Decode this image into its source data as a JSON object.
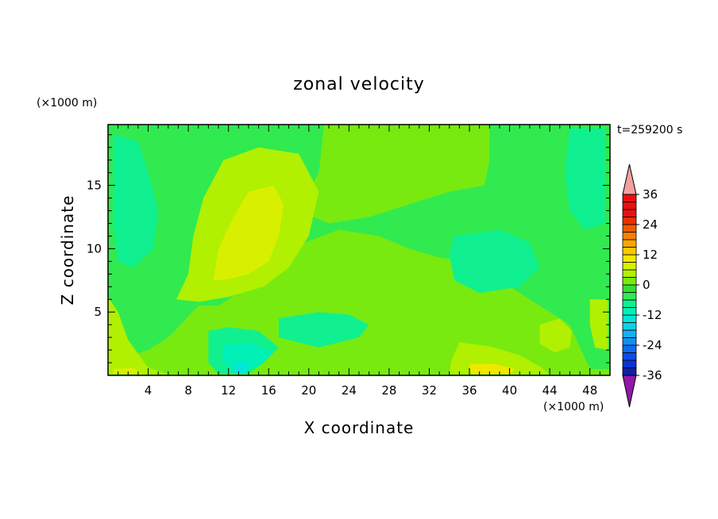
{
  "chart_data": {
    "type": "heatmap",
    "title": "zonal velocity",
    "time_label": "t=259200 s",
    "xlabel": "X coordinate",
    "ylabel": "Z coordinate",
    "x_unit": "(×1000 m)",
    "y_unit": "(×1000 m)",
    "xlim": [
      0,
      50
    ],
    "ylim": [
      0,
      19.8
    ],
    "x_ticks": [
      4,
      8,
      12,
      16,
      20,
      24,
      28,
      32,
      36,
      40,
      44,
      48
    ],
    "y_ticks": [
      5,
      10,
      15
    ],
    "colorbar": {
      "levels": [
        -42,
        -39,
        -36,
        -33,
        -30,
        -27,
        -24,
        -21,
        -18,
        -15,
        -12,
        -9,
        -6,
        -3,
        0,
        3,
        6,
        9,
        12,
        15,
        18,
        21,
        24,
        27,
        30,
        33,
        36,
        39,
        42
      ],
      "tick_labels": [
        36,
        24,
        12,
        0,
        -12,
        -24,
        -36
      ],
      "colors": [
        "#6a0d9a",
        "#2a1a8c",
        "#1020a8",
        "#0a34d0",
        "#0a4ee8",
        "#0a6cf0",
        "#1090f0",
        "#18b0f0",
        "#10d0e8",
        "#00e8d8",
        "#00f0b8",
        "#10f090",
        "#30ea50",
        "#30e030",
        "#78ea10",
        "#b0f000",
        "#d8f000",
        "#f0e800",
        "#f8c800",
        "#f8a800",
        "#f88000",
        "#f05a00",
        "#e83000",
        "#e81010"
      ],
      "over_color": "#f4a0a0",
      "under_color": "#9018a8"
    },
    "field_regions": [
      {
        "value": 1.5,
        "points": [
          [
            0,
            0
          ],
          [
            50,
            0
          ],
          [
            50,
            19.8
          ],
          [
            0,
            19.8
          ]
        ]
      },
      {
        "value": -4.5,
        "points": [
          [
            0,
            19.8
          ],
          [
            6.5,
            19.8
          ],
          [
            7,
            17
          ],
          [
            6,
            14
          ],
          [
            6.5,
            12
          ],
          [
            6,
            10
          ],
          [
            4,
            8
          ],
          [
            0,
            7
          ]
        ]
      },
      {
        "value": -4.5,
        "points": [
          [
            45,
            19.8
          ],
          [
            50,
            19.8
          ],
          [
            50,
            0.5
          ],
          [
            48,
            0.5
          ],
          [
            46,
            4
          ],
          [
            42,
            6
          ],
          [
            38,
            8
          ],
          [
            36,
            9
          ],
          [
            33,
            9.3
          ],
          [
            30,
            10
          ],
          [
            27,
            11
          ],
          [
            23,
            11.5
          ],
          [
            18,
            10
          ],
          [
            14,
            7
          ],
          [
            11,
            5.5
          ],
          [
            9,
            5.5
          ],
          [
            6,
            3
          ],
          [
            4,
            2
          ],
          [
            1,
            1.3
          ],
          [
            0,
            1.5
          ],
          [
            0,
            7
          ],
          [
            4,
            8
          ],
          [
            6,
            10
          ],
          [
            6.5,
            12
          ],
          [
            6,
            14
          ],
          [
            7,
            17
          ],
          [
            6.5,
            19.8
          ],
          [
            21.5,
            19.8
          ],
          [
            21,
            16
          ],
          [
            19,
            13
          ],
          [
            22,
            12
          ],
          [
            26,
            12.5
          ],
          [
            30,
            13.5
          ],
          [
            34,
            14.5
          ],
          [
            37.5,
            15
          ],
          [
            38,
            17
          ],
          [
            38,
            19.8
          ]
        ]
      },
      {
        "value": -7.5,
        "points": [
          [
            0.5,
            19
          ],
          [
            3,
            18.5
          ],
          [
            4,
            16
          ],
          [
            5,
            13
          ],
          [
            4.5,
            10
          ],
          [
            2.5,
            8.5
          ],
          [
            1,
            9
          ],
          [
            0.5,
            12
          ]
        ]
      },
      {
        "value": -7.5,
        "points": [
          [
            46,
            19.5
          ],
          [
            49.5,
            19.5
          ],
          [
            49.5,
            12
          ],
          [
            47.5,
            11.5
          ],
          [
            46,
            13
          ],
          [
            45.5,
            16
          ]
        ]
      },
      {
        "value": -7.5,
        "points": [
          [
            34.5,
            11
          ],
          [
            39,
            11.5
          ],
          [
            42,
            10.5
          ],
          [
            43,
            8.5
          ],
          [
            41,
            7
          ],
          [
            37,
            6.5
          ],
          [
            34.5,
            7.5
          ],
          [
            34,
            9.5
          ]
        ]
      },
      {
        "value": -7.5,
        "points": [
          [
            17,
            4.5
          ],
          [
            21,
            5
          ],
          [
            24,
            4.8
          ],
          [
            26,
            4
          ],
          [
            25,
            3
          ],
          [
            21,
            2.2
          ],
          [
            17,
            3
          ]
        ]
      },
      {
        "value": -7.5,
        "points": [
          [
            10,
            3.5
          ],
          [
            12,
            3.8
          ],
          [
            15,
            3.5
          ],
          [
            17,
            2.2
          ],
          [
            15.5,
            1
          ],
          [
            14,
            0.1
          ],
          [
            11,
            0.1
          ],
          [
            10,
            1
          ]
        ]
      },
      {
        "value": -10.5,
        "points": [
          [
            11.5,
            2.4
          ],
          [
            14,
            2.6
          ],
          [
            16.5,
            1.8
          ],
          [
            15,
            0.7
          ],
          [
            12.5,
            0.4
          ],
          [
            11.5,
            1
          ]
        ]
      },
      {
        "value": -13.5,
        "points": [
          [
            12.5,
            0.1
          ],
          [
            13.8,
            0.1
          ],
          [
            14,
            0.9
          ],
          [
            13.2,
            1.1
          ],
          [
            12.6,
            0.8
          ]
        ]
      },
      {
        "value": 4.5,
        "points": [
          [
            6.8,
            6
          ],
          [
            8,
            8
          ],
          [
            8.5,
            11
          ],
          [
            9.5,
            14
          ],
          [
            11.5,
            17
          ],
          [
            15,
            18
          ],
          [
            19,
            17.5
          ],
          [
            21,
            14.5
          ],
          [
            20,
            11
          ],
          [
            18,
            8.5
          ],
          [
            15.5,
            7
          ],
          [
            12,
            6.2
          ],
          [
            9,
            5.8
          ]
        ]
      },
      {
        "value": 4.5,
        "points": [
          [
            0,
            6.2
          ],
          [
            1,
            5
          ],
          [
            2,
            2.8
          ],
          [
            4,
            0.6
          ],
          [
            6,
            0.1
          ],
          [
            0,
            0.1
          ]
        ]
      },
      {
        "value": 4.5,
        "points": [
          [
            35,
            2.6
          ],
          [
            38,
            2.3
          ],
          [
            41,
            1.6
          ],
          [
            43,
            0.7
          ],
          [
            44,
            0.1
          ],
          [
            34,
            0.1
          ],
          [
            34.2,
            1.2
          ]
        ]
      },
      {
        "value": 4.5,
        "points": [
          [
            43,
            4
          ],
          [
            45,
            4.5
          ],
          [
            46.2,
            3.5
          ],
          [
            46,
            2.2
          ],
          [
            44.5,
            1.8
          ],
          [
            43,
            2.5
          ]
        ]
      },
      {
        "value": 4.5,
        "points": [
          [
            48,
            6
          ],
          [
            49.8,
            6
          ],
          [
            49.8,
            2
          ],
          [
            48.5,
            2.2
          ],
          [
            48,
            4
          ]
        ]
      },
      {
        "value": 7.5,
        "points": [
          [
            10.5,
            7.5
          ],
          [
            11,
            10
          ],
          [
            12.5,
            12.5
          ],
          [
            14,
            14.5
          ],
          [
            16.5,
            15
          ],
          [
            17.5,
            13.5
          ],
          [
            17,
            11
          ],
          [
            16,
            9
          ],
          [
            14,
            8
          ],
          [
            12,
            7.6
          ]
        ]
      },
      {
        "value": 7.5,
        "points": [
          [
            0.5,
            0.5
          ],
          [
            2.5,
            0.6
          ],
          [
            3.5,
            0.1
          ],
          [
            0.5,
            0.1
          ]
        ]
      },
      {
        "value": 10.5,
        "points": [
          [
            36,
            0.9
          ],
          [
            38.5,
            0.9
          ],
          [
            40.5,
            0.5
          ],
          [
            40,
            0.1
          ],
          [
            36.2,
            0.1
          ]
        ]
      }
    ]
  }
}
